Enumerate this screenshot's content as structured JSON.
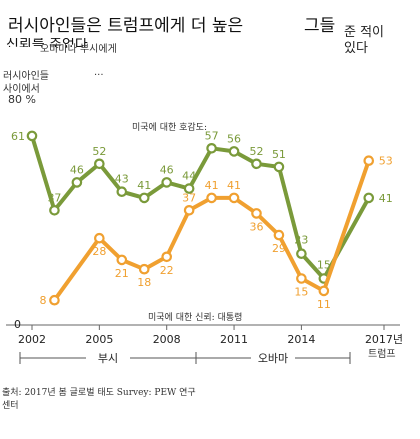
{
  "header": {
    "title_line1": "러시아인들은 트럼프에게 더 높은",
    "title_line1_right": "그들",
    "title_line2": "신뢰를 주었다",
    "title_line2_right": "준 적이",
    "title_line3_right": "있다",
    "subtitle": "오바마나 부시에게",
    "ellipsis": "..."
  },
  "ylabel": {
    "line1": "러시아인들",
    "line2": "사이에서",
    "max_label": "80 %"
  },
  "chart_data": {
    "type": "line",
    "title": "러시아인들은 트럼프에게 더 높은 신뢰를 주었다",
    "xlabel": "",
    "ylabel": "러시아인들 사이에서 (%)",
    "ylim": [
      0,
      80
    ],
    "x": [
      2002,
      2003,
      2004,
      2005,
      2006,
      2007,
      2008,
      2009,
      2010,
      2011,
      2012,
      2013,
      2014,
      2015,
      2017
    ],
    "x_ticks": [
      "2002",
      "2005",
      "2008",
      "2011",
      "2014",
      "2017년"
    ],
    "x_tick_sublabel": "트럼프",
    "y_zero_label": "0",
    "series": [
      {
        "name": "미국에 대한 호감도:",
        "color": "#7a9a3a",
        "x": [
          2002,
          2003,
          2004,
          2005,
          2006,
          2007,
          2008,
          2009,
          2010,
          2011,
          2012,
          2013,
          2014,
          2015,
          2017
        ],
        "values": [
          61,
          37,
          46,
          52,
          43,
          41,
          46,
          44,
          57,
          56,
          52,
          51,
          23,
          15,
          41
        ]
      },
      {
        "name": "미국에 대한 신뢰: 대통령",
        "color": "#f0a030",
        "x": [
          2003,
          2005,
          2006,
          2007,
          2008,
          2009,
          2010,
          2011,
          2012,
          2013,
          2014,
          2015,
          2017
        ],
        "values": [
          8,
          28,
          21,
          18,
          22,
          37,
          41,
          41,
          36,
          29,
          15,
          11,
          53
        ]
      }
    ],
    "eras": [
      {
        "name": "부시"
      },
      {
        "name": "오바마"
      }
    ]
  },
  "footer": {
    "source_line1": "출처: 2017년 봄 글로벌 태도 Survey: PEW 연구",
    "source_line2": "센터"
  }
}
